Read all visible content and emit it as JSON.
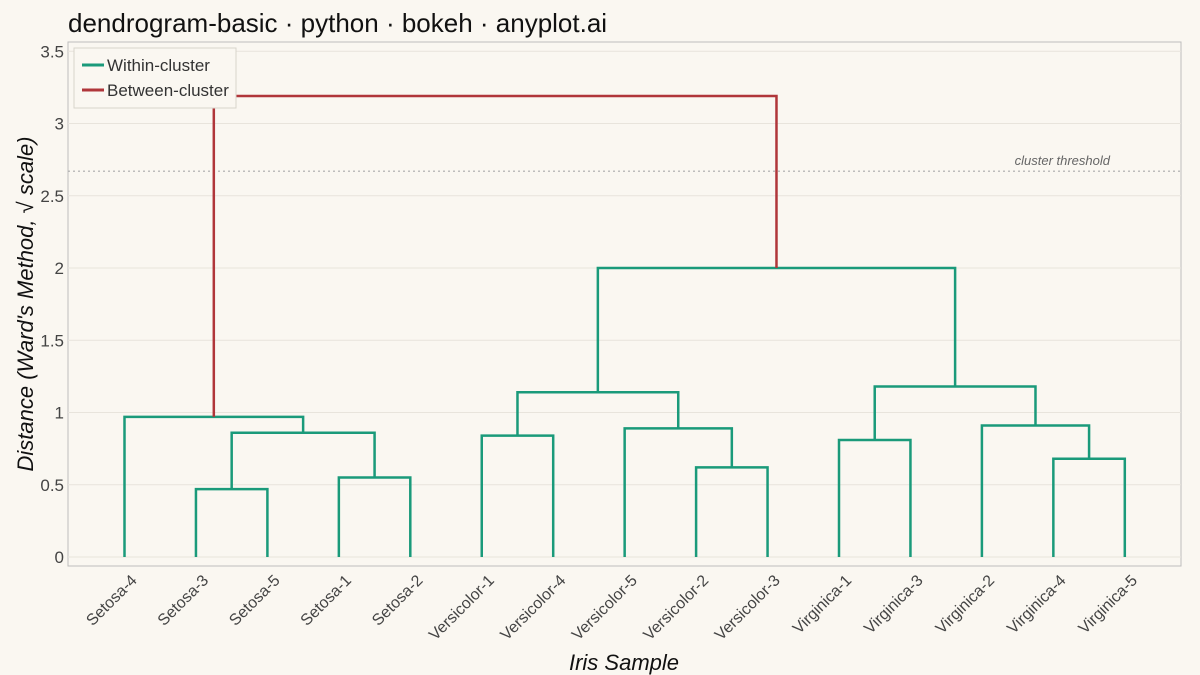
{
  "title": "dendrogram-basic · python · bokeh · anyplot.ai",
  "chart_data": {
    "type": "dendrogram",
    "xlabel": "Iris Sample",
    "ylabel": "Distance (Ward's Method, √ scale)",
    "y_ticks": [
      "0",
      "0.5",
      "1",
      "1.5",
      "2",
      "2.5",
      "3",
      "3.5"
    ],
    "ylim": [
      0,
      3.5
    ],
    "leaves": [
      "Setosa-4",
      "Setosa-3",
      "Setosa-5",
      "Setosa-1",
      "Setosa-2",
      "Versicolor-1",
      "Versicolor-4",
      "Versicolor-5",
      "Versicolor-2",
      "Versicolor-3",
      "Virginica-1",
      "Virginica-3",
      "Virginica-2",
      "Virginica-4",
      "Virginica-5"
    ],
    "merges": [
      {
        "left": "leaf:1",
        "right": "leaf:2",
        "height": 0.47,
        "group": "within"
      },
      {
        "left": "leaf:3",
        "right": "leaf:4",
        "height": 0.55,
        "group": "within"
      },
      {
        "left": "m:0",
        "right": "m:1",
        "height": 0.86,
        "group": "within"
      },
      {
        "left": "leaf:0",
        "right": "m:2",
        "height": 0.97,
        "group": "within"
      },
      {
        "left": "leaf:5",
        "right": "leaf:6",
        "height": 0.84,
        "group": "within"
      },
      {
        "left": "leaf:8",
        "right": "leaf:9",
        "height": 0.62,
        "group": "within"
      },
      {
        "left": "leaf:7",
        "right": "m:5",
        "height": 0.89,
        "group": "within"
      },
      {
        "left": "m:4",
        "right": "m:6",
        "height": 1.14,
        "group": "within"
      },
      {
        "left": "leaf:10",
        "right": "leaf:11",
        "height": 0.81,
        "group": "within"
      },
      {
        "left": "leaf:13",
        "right": "leaf:14",
        "height": 0.68,
        "group": "within"
      },
      {
        "left": "leaf:12",
        "right": "m:9",
        "height": 0.91,
        "group": "within"
      },
      {
        "left": "m:8",
        "right": "m:10",
        "height": 1.18,
        "group": "within"
      },
      {
        "left": "m:7",
        "right": "m:11",
        "height": 2.0,
        "group": "within"
      },
      {
        "left": "m:3",
        "right": "m:12",
        "height": 3.19,
        "group": "between"
      }
    ],
    "threshold": {
      "value": 2.67,
      "label": "cluster threshold"
    },
    "legend": {
      "position": "top-left",
      "items": [
        {
          "label": "Within-cluster",
          "group": "within"
        },
        {
          "label": "Between-cluster",
          "group": "between"
        }
      ]
    },
    "colors": {
      "within": "#1a9a7a",
      "between": "#b0363a",
      "threshold": "#aaaaaa",
      "grid": "#e8e4dc",
      "frame": "#bdbdbd"
    },
    "grid": true
  }
}
